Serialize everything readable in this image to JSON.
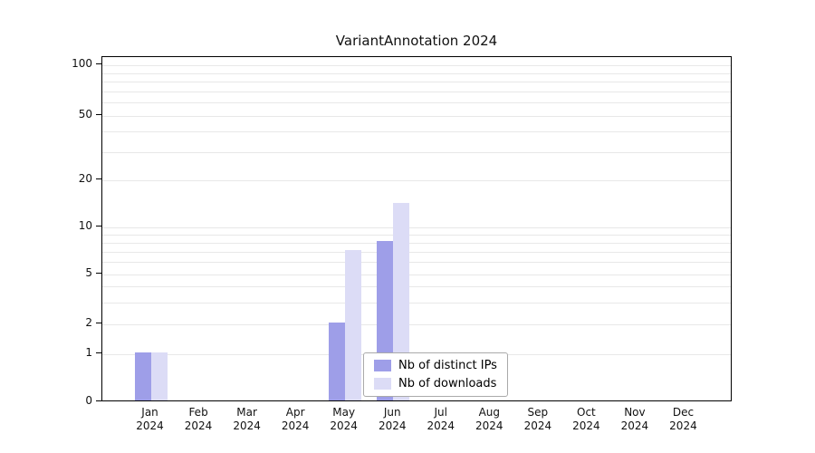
{
  "figure": {
    "background": "#ffffff"
  },
  "chart_data": {
    "type": "bar",
    "title": "VariantAnnotation 2024",
    "categories": [
      "Jan",
      "Feb",
      "Mar",
      "Apr",
      "May",
      "Jun",
      "Jul",
      "Aug",
      "Sep",
      "Oct",
      "Nov",
      "Dec"
    ],
    "year_label": "2024",
    "series": [
      {
        "name": "Nb of distinct IPs",
        "color": "#9e9ee8",
        "values": [
          1,
          0,
          0,
          0,
          2,
          8,
          0,
          0,
          0,
          0,
          0,
          0
        ]
      },
      {
        "name": "Nb of downloads",
        "color": "#dcdcf6",
        "values": [
          1,
          0,
          0,
          0,
          7,
          14,
          0,
          0,
          0,
          0,
          0,
          0
        ]
      }
    ],
    "xlabel": "",
    "ylabel": "",
    "yscale": "log",
    "yticks": [
      0,
      1,
      2,
      5,
      10,
      20,
      50,
      100
    ],
    "ylim": [
      0,
      110
    ],
    "grid": true,
    "grid_color": "#e8e8e8",
    "legend_position": "bottom-center"
  }
}
